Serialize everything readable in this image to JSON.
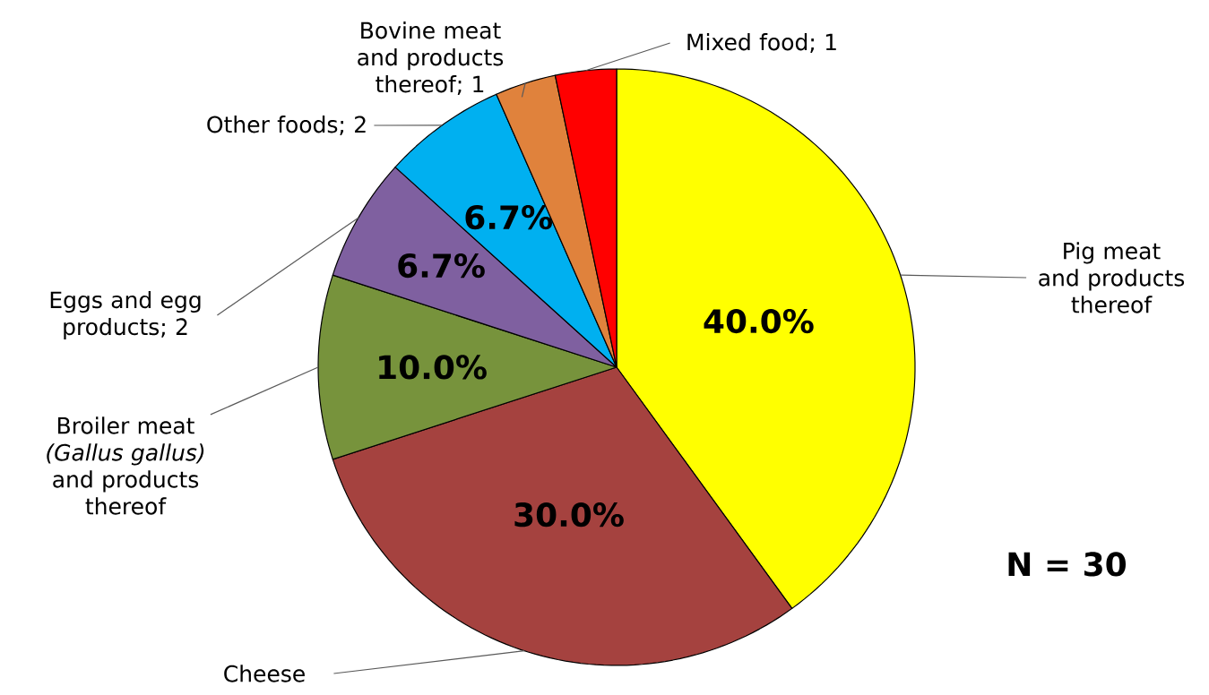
{
  "chart_data": {
    "type": "pie",
    "categories": [
      "Pig meat and products thereof",
      "Cheese",
      "Broiler meat *(Gallus gallus)* and products thereof",
      "Eggs and egg products; 2",
      "Other foods; 2",
      "Bovine meat and products thereof; 1",
      "Mixed food; 1"
    ],
    "values": [
      40.0,
      30.0,
      10.0,
      6.7,
      6.7,
      3.3,
      3.3
    ],
    "colors": [
      "#ffff00",
      "#a5423f",
      "#77933c",
      "#7f60a0",
      "#00b0f0",
      "#e0823c",
      "#ff0000"
    ],
    "value_labels": [
      "40.0%",
      "30.0%",
      "10.0%",
      "6.7%",
      "6.7%",
      null,
      null
    ],
    "annotations": [
      "N = 30"
    ]
  }
}
